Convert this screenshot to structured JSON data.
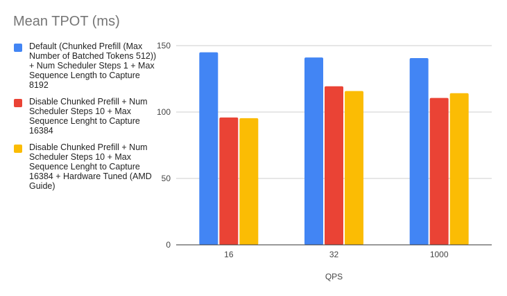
{
  "chart_data": {
    "type": "bar",
    "title": "Mean TPOT (ms)",
    "xlabel": "QPS",
    "ylabel": "",
    "categories": [
      "16",
      "32",
      "1000"
    ],
    "ylim": [
      0,
      150
    ],
    "yticks": [
      0,
      50,
      100,
      150
    ],
    "grid": true,
    "legend_position": "left",
    "series": [
      {
        "name": "Default (Chunked Prefill (Max Number of Batched Tokens 512)) + Num Scheduler Steps 1 + Max Sequence Length to Capture 8192",
        "color": "#4285f4",
        "values": [
          145.0,
          141.1,
          140.6
        ]
      },
      {
        "name": "Disable Chunked Prefill + Num Scheduler Steps 10 + Max Sequence Lenght to Capture 16384",
        "color": "#ea4335",
        "values": [
          95.9,
          119.4,
          110.6
        ]
      },
      {
        "name": "Disable Chunked Prefill + Num Scheduler Steps 10 + Max Sequence Lenght to Capture 16384 + Hardware Tuned (AMD Guide)",
        "color": "#fbbc04",
        "values": [
          95.4,
          115.8,
          114.2
        ]
      }
    ]
  }
}
